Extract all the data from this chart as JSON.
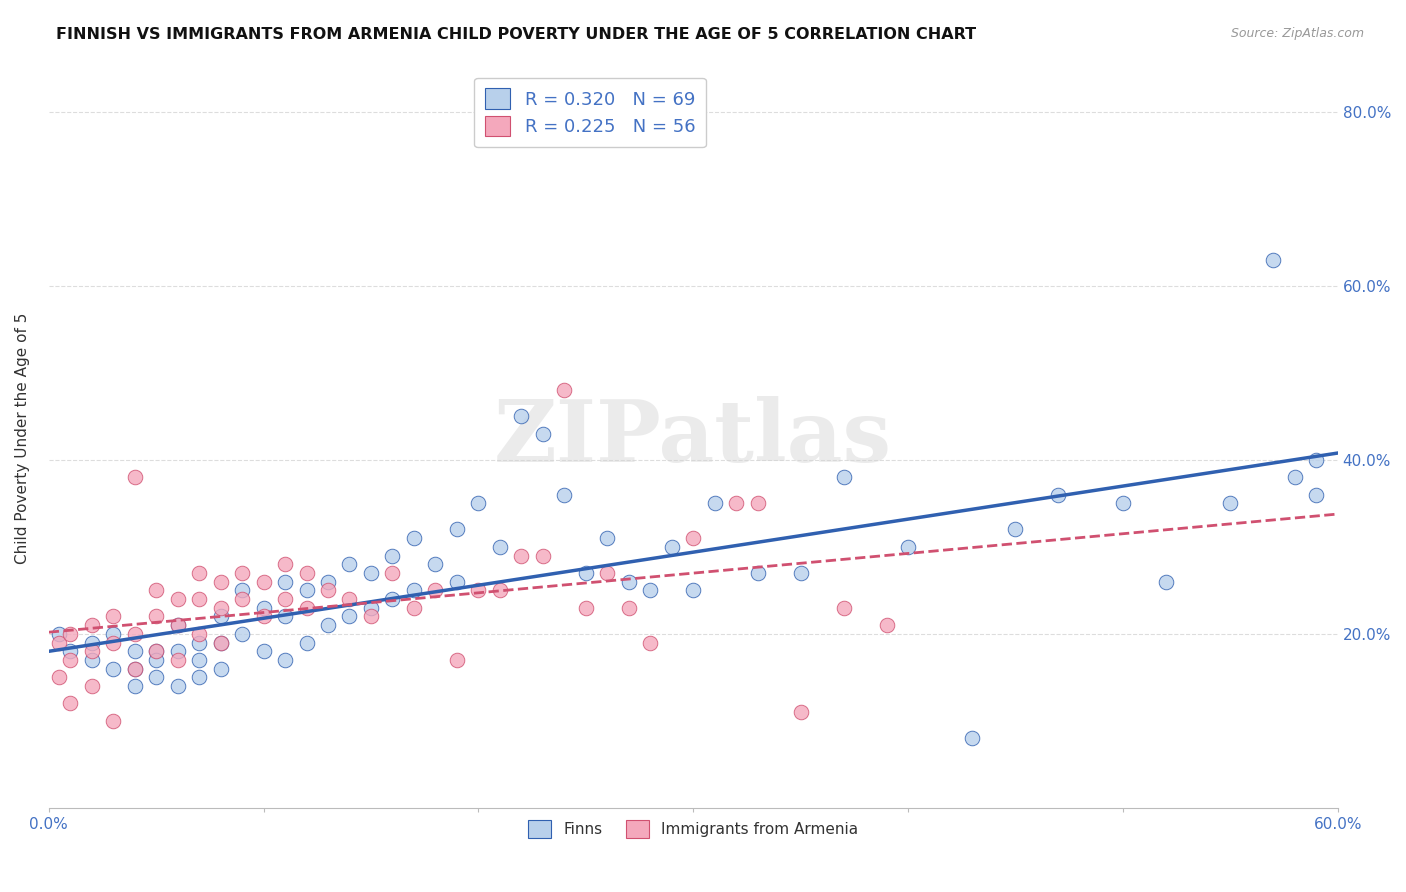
{
  "title": "FINNISH VS IMMIGRANTS FROM ARMENIA CHILD POVERTY UNDER THE AGE OF 5 CORRELATION CHART",
  "source": "Source: ZipAtlas.com",
  "ylabel": "Child Poverty Under the Age of 5",
  "xlim": [
    0.0,
    0.6
  ],
  "ylim": [
    0.0,
    0.85
  ],
  "yticks": [
    0.2,
    0.4,
    0.6,
    0.8
  ],
  "ytick_labels": [
    "20.0%",
    "40.0%",
    "60.0%",
    "80.0%"
  ],
  "xticks": [
    0.0,
    0.1,
    0.2,
    0.3,
    0.4,
    0.5,
    0.6
  ],
  "xtick_labels": [
    "0.0%",
    "",
    "",
    "",
    "",
    "",
    "60.0%"
  ],
  "background_color": "#ffffff",
  "grid_color": "#dddddd",
  "finn_color": "#b8d0eb",
  "armenia_color": "#f4a8bc",
  "finn_line_color": "#3060b0",
  "armenia_line_color": "#d05070",
  "finn_R": 0.32,
  "finn_N": 69,
  "armenia_R": 0.225,
  "armenia_N": 56,
  "watermark_text": "ZIPatlas",
  "finn_scatter_x": [
    0.005,
    0.01,
    0.02,
    0.02,
    0.03,
    0.03,
    0.04,
    0.04,
    0.04,
    0.05,
    0.05,
    0.05,
    0.06,
    0.06,
    0.06,
    0.07,
    0.07,
    0.07,
    0.08,
    0.08,
    0.08,
    0.09,
    0.09,
    0.1,
    0.1,
    0.11,
    0.11,
    0.11,
    0.12,
    0.12,
    0.13,
    0.13,
    0.14,
    0.14,
    0.15,
    0.15,
    0.16,
    0.16,
    0.17,
    0.17,
    0.18,
    0.19,
    0.19,
    0.2,
    0.21,
    0.22,
    0.23,
    0.24,
    0.25,
    0.26,
    0.27,
    0.28,
    0.29,
    0.3,
    0.31,
    0.33,
    0.35,
    0.37,
    0.4,
    0.43,
    0.45,
    0.47,
    0.5,
    0.52,
    0.55,
    0.57,
    0.58,
    0.59,
    0.59
  ],
  "finn_scatter_y": [
    0.2,
    0.18,
    0.19,
    0.17,
    0.2,
    0.16,
    0.18,
    0.16,
    0.14,
    0.18,
    0.17,
    0.15,
    0.21,
    0.18,
    0.14,
    0.19,
    0.17,
    0.15,
    0.22,
    0.19,
    0.16,
    0.25,
    0.2,
    0.23,
    0.18,
    0.26,
    0.22,
    0.17,
    0.25,
    0.19,
    0.26,
    0.21,
    0.28,
    0.22,
    0.27,
    0.23,
    0.29,
    0.24,
    0.31,
    0.25,
    0.28,
    0.32,
    0.26,
    0.35,
    0.3,
    0.45,
    0.43,
    0.36,
    0.27,
    0.31,
    0.26,
    0.25,
    0.3,
    0.25,
    0.35,
    0.27,
    0.27,
    0.38,
    0.3,
    0.08,
    0.32,
    0.36,
    0.35,
    0.26,
    0.35,
    0.63,
    0.38,
    0.36,
    0.4
  ],
  "armenia_scatter_x": [
    0.005,
    0.005,
    0.01,
    0.01,
    0.01,
    0.02,
    0.02,
    0.02,
    0.03,
    0.03,
    0.03,
    0.04,
    0.04,
    0.04,
    0.05,
    0.05,
    0.05,
    0.06,
    0.06,
    0.06,
    0.07,
    0.07,
    0.07,
    0.08,
    0.08,
    0.08,
    0.09,
    0.09,
    0.1,
    0.1,
    0.11,
    0.11,
    0.12,
    0.12,
    0.13,
    0.14,
    0.15,
    0.16,
    0.17,
    0.18,
    0.19,
    0.2,
    0.21,
    0.22,
    0.23,
    0.24,
    0.25,
    0.26,
    0.27,
    0.28,
    0.3,
    0.32,
    0.33,
    0.35,
    0.37,
    0.39
  ],
  "armenia_scatter_y": [
    0.19,
    0.15,
    0.2,
    0.17,
    0.12,
    0.21,
    0.18,
    0.14,
    0.22,
    0.19,
    0.1,
    0.38,
    0.2,
    0.16,
    0.25,
    0.22,
    0.18,
    0.24,
    0.21,
    0.17,
    0.27,
    0.24,
    0.2,
    0.26,
    0.23,
    0.19,
    0.27,
    0.24,
    0.26,
    0.22,
    0.28,
    0.24,
    0.27,
    0.23,
    0.25,
    0.24,
    0.22,
    0.27,
    0.23,
    0.25,
    0.17,
    0.25,
    0.25,
    0.29,
    0.29,
    0.48,
    0.23,
    0.27,
    0.23,
    0.19,
    0.31,
    0.35,
    0.35,
    0.11,
    0.23,
    0.21
  ]
}
